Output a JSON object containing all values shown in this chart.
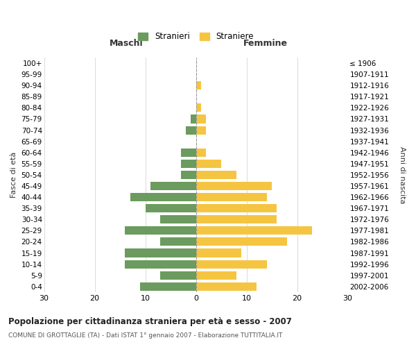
{
  "age_groups": [
    "0-4",
    "5-9",
    "10-14",
    "15-19",
    "20-24",
    "25-29",
    "30-34",
    "35-39",
    "40-44",
    "45-49",
    "50-54",
    "55-59",
    "60-64",
    "65-69",
    "70-74",
    "75-79",
    "80-84",
    "85-89",
    "90-94",
    "95-99",
    "100+"
  ],
  "birth_years": [
    "2002-2006",
    "1997-2001",
    "1992-1996",
    "1987-1991",
    "1982-1986",
    "1977-1981",
    "1972-1976",
    "1967-1971",
    "1962-1966",
    "1957-1961",
    "1952-1956",
    "1947-1951",
    "1942-1946",
    "1937-1941",
    "1932-1936",
    "1927-1931",
    "1922-1926",
    "1917-1921",
    "1912-1916",
    "1907-1911",
    "≤ 1906"
  ],
  "maschi": [
    11,
    7,
    14,
    14,
    7,
    14,
    7,
    10,
    13,
    9,
    3,
    3,
    3,
    0,
    2,
    1,
    0,
    0,
    0,
    0,
    0
  ],
  "femmine": [
    12,
    8,
    14,
    9,
    18,
    23,
    16,
    16,
    14,
    15,
    8,
    5,
    2,
    0,
    2,
    2,
    1,
    0,
    1,
    0,
    0
  ],
  "maschi_color": "#6b9b5e",
  "femmine_color": "#f5c542",
  "background_color": "#ffffff",
  "grid_color": "#cccccc",
  "title": "Popolazione per cittadinanza straniera per età e sesso - 2007",
  "subtitle": "COMUNE DI GROTTAGLIE (TA) - Dati ISTAT 1° gennaio 2007 - Elaborazione TUTTITALIA.IT",
  "ylabel_left": "Fasce di età",
  "ylabel_right": "Anni di nascita",
  "header_left": "Maschi",
  "header_right": "Femmine",
  "legend_maschi": "Stranieri",
  "legend_femmine": "Straniere",
  "xlim": 30,
  "bar_height": 0.75
}
